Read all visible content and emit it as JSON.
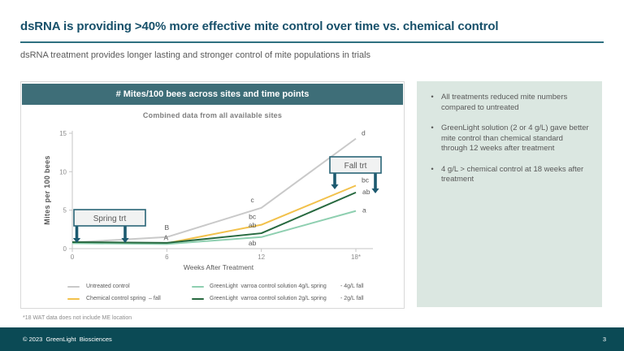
{
  "slide": {
    "title": "dsRNA is providing >40% more effective mite control over time vs. chemical control",
    "subtitle": "dsRNA treatment provides longer lasting and stronger control of mite populations in trials",
    "footnote": "*18 WAT data does not include ME location",
    "footer": {
      "copyright": "© 2023  GreenLight  Biosciences",
      "page_number": "3"
    }
  },
  "colors": {
    "accent_teal": "#3e6e78",
    "footer_teal": "#0b4a55",
    "arrow_teal": "#1d5a70",
    "sidebar_bg": "#dbe7e1",
    "untreated_gray": "#c9c9c9",
    "chemical_yellow": "#f2c14b",
    "greenlight_4gl_green": "#8ecfb0",
    "greenlight_2gl_green": "#27693f"
  },
  "chart_data": {
    "type": "line",
    "title": "# Mites/100 bees across sites and time points",
    "subtitle": "Combined data from all available sites",
    "xlabel": "Weeks After Treatment",
    "ylabel": "Mites per 100 bees",
    "x": [
      0,
      6,
      12,
      18
    ],
    "x_tick_labels": [
      "0",
      "6",
      "12",
      "18*"
    ],
    "y_ticks": [
      0,
      5,
      10,
      15
    ],
    "ylim": [
      0,
      15
    ],
    "grid": false,
    "legend_position": "bottom",
    "series": [
      {
        "name": "Untreated control",
        "color": "#c9c9c9",
        "values": [
          0.8,
          1.5,
          5.3,
          14.3
        ],
        "point_labels": [
          null,
          {
            "label": "B",
            "pos": "above"
          },
          {
            "label": "c",
            "pos": "above-left"
          },
          {
            "label": "d",
            "pos": "right-up"
          }
        ]
      },
      {
        "name": "Chemical control spring  – fall",
        "color": "#f2c14b",
        "values": [
          0.8,
          0.7,
          3.1,
          8.2
        ],
        "point_labels": [
          null,
          null,
          {
            "label": "bc",
            "pos": "above-left"
          },
          {
            "label": "bc",
            "pos": "right-up"
          }
        ]
      },
      {
        "name": "GreenLight  varroa control solution 4g/L spring - 4g/L fall",
        "color": "#8ecfb0",
        "values": [
          0.7,
          0.6,
          1.5,
          4.9
        ],
        "point_labels": [
          null,
          null,
          {
            "label": "ab",
            "pos": "below-left"
          },
          {
            "label": "a",
            "pos": "right"
          }
        ]
      },
      {
        "name": "GreenLight  varroa control solution 2g/L spring - 2g/L fall",
        "color": "#27693f",
        "values": [
          0.85,
          0.75,
          2.0,
          7.3
        ],
        "point_labels": [
          null,
          {
            "label": "A",
            "pos": "above-close"
          },
          {
            "label": "ab",
            "pos": "above-left"
          },
          {
            "label": "ab",
            "pos": "right"
          }
        ]
      }
    ],
    "annotations": [
      {
        "id": "spring",
        "label": "Spring trt"
      },
      {
        "id": "fall",
        "label": "Fall trt"
      }
    ]
  },
  "legend": {
    "rows": [
      {
        "items": [
          {
            "swatch": "#c9c9c9",
            "label": "Untreated control"
          },
          {
            "swatch": "#8ecfb0",
            "label": "GreenLight  varroa control solution 4g/L spring",
            "suffix": "- 4g/L fall"
          }
        ]
      },
      {
        "items": [
          {
            "swatch": "#f2c14b",
            "label": "Chemical control spring  – fall"
          },
          {
            "swatch": "#27693f",
            "label": "GreenLight  varroa control solution 2g/L spring",
            "suffix": "- 2g/L fall"
          }
        ]
      }
    ]
  },
  "sidebar": {
    "bullets": [
      "All treatments reduced mite numbers compared to untreated",
      "GreenLight solution (2 or 4 g/L) gave better mite control than chemical standard through 12 weeks after treatment",
      "4 g/L > chemical control at 18 weeks after treatment"
    ]
  }
}
